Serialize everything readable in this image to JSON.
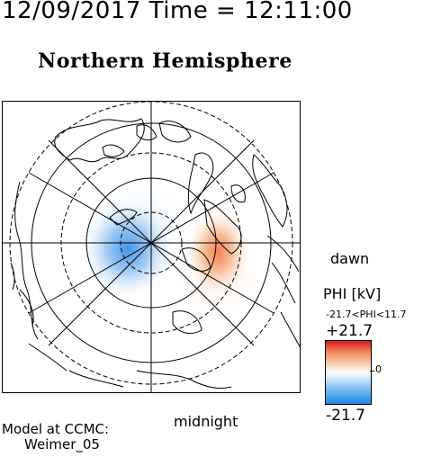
{
  "header": {
    "datetime": "12/09/2017 Time = 12:11:00"
  },
  "map": {
    "title": "Northern Hemisphere",
    "dawn_label": "dawn",
    "midnight_label": "midnight"
  },
  "legend": {
    "title": "PHI [kV]",
    "range": "-21.7<PHI<11.7",
    "max_label": "+21.7",
    "min_label": "-21.7",
    "zero_label": "0",
    "colors": {
      "max": "#d7191c",
      "zero": "#ffffff",
      "min": "#1e88e5"
    }
  },
  "credit": {
    "line1": "Model at CCMC:",
    "line2": "Weimer_05"
  }
}
